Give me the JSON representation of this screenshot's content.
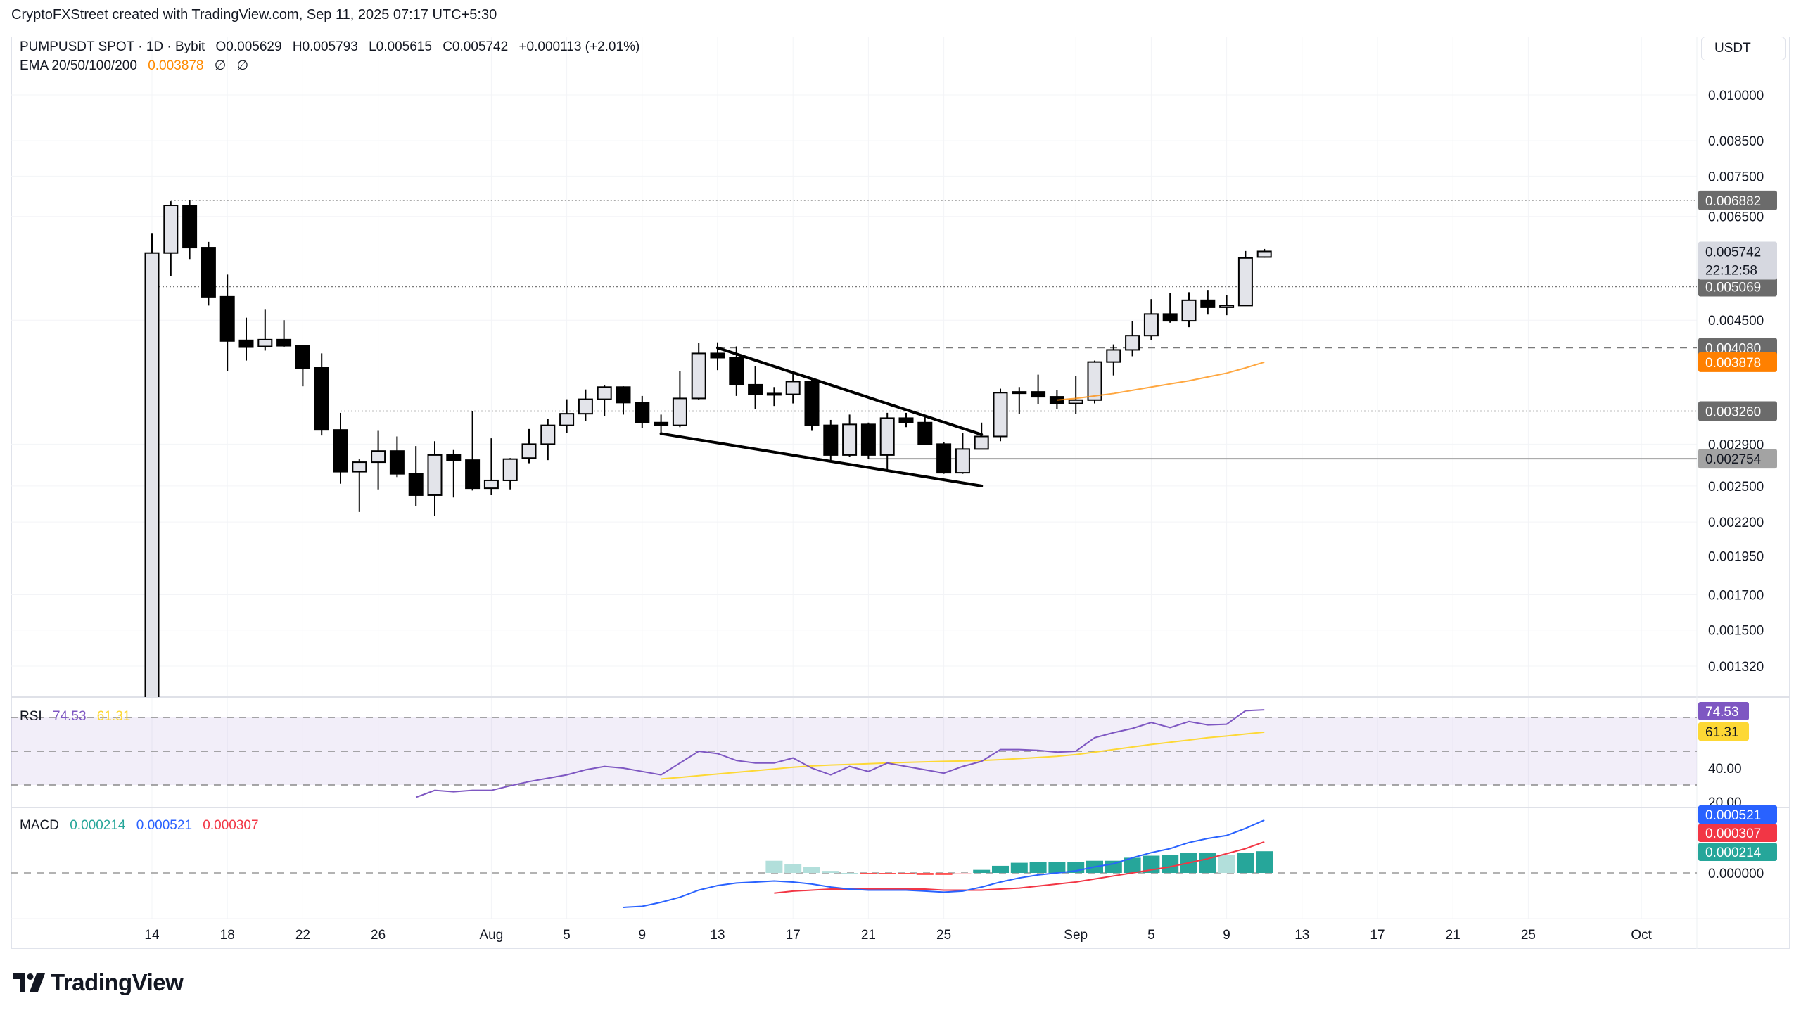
{
  "attribution": "CryptoFXStreet created with TradingView.com, Sep 11, 2025 07:17 UTC+5:30",
  "header": {
    "symbol": "PUMPUSDT SPOT · 1D · Bybit",
    "open": "O0.005629",
    "high": "H0.005793",
    "low": "L0.005615",
    "close": "C0.005742",
    "change": "+0.000113 (+2.01%)",
    "ema_label": "EMA 20/50/100/200",
    "ema_value": "0.003878",
    "ema_na_1": "∅",
    "ema_na_2": "∅"
  },
  "currency": "USDT",
  "logo_text": "TradingView",
  "colors": {
    "ema": "#ff8a00",
    "rsi": "#7e57c2",
    "rsi_ma": "#fdd835",
    "macd": "#2962ff",
    "signal": "#f23645",
    "hist_pos": "#26a69a",
    "hist_pos_light": "#b2dfdb",
    "hist_neg": "#ff5252",
    "hist_neg_light": "#ffcdd2",
    "up_body": "#e3e4ea",
    "down_body": "#000000"
  },
  "chart_data": [
    {
      "type": "candlestick",
      "scale": "log",
      "y_ticks": [
        "0.010000",
        "0.008500",
        "0.007500",
        "0.006500",
        "0.004500",
        "0.002900",
        "0.002500",
        "0.002200",
        "0.001950",
        "0.001700",
        "0.001500",
        "0.001320"
      ],
      "x_ticks": [
        {
          "date": "2025-07-14",
          "label": "14"
        },
        {
          "date": "2025-07-18",
          "label": "18"
        },
        {
          "date": "2025-07-22",
          "label": "22"
        },
        {
          "date": "2025-07-26",
          "label": "26"
        },
        {
          "date": "2025-08-01",
          "label": "Aug"
        },
        {
          "date": "2025-08-05",
          "label": "5"
        },
        {
          "date": "2025-08-09",
          "label": "9"
        },
        {
          "date": "2025-08-13",
          "label": "13"
        },
        {
          "date": "2025-08-17",
          "label": "17"
        },
        {
          "date": "2025-08-21",
          "label": "21"
        },
        {
          "date": "2025-08-25",
          "label": "25"
        },
        {
          "date": "2025-09-01",
          "label": "Sep"
        },
        {
          "date": "2025-09-05",
          "label": "5"
        },
        {
          "date": "2025-09-09",
          "label": "9"
        },
        {
          "date": "2025-09-13",
          "label": "13"
        },
        {
          "date": "2025-09-17",
          "label": "17"
        },
        {
          "date": "2025-09-21",
          "label": "21"
        },
        {
          "date": "2025-09-25",
          "label": "25"
        },
        {
          "date": "2025-10-01",
          "label": "Oct"
        }
      ],
      "candles_columns": [
        "date",
        "open",
        "high",
        "low",
        "close"
      ],
      "candles": [
        [
          "2025-07-14",
          0.0011,
          0.00613,
          0.0011,
          0.00571
        ],
        [
          "2025-07-15",
          0.00571,
          0.00686,
          0.00526,
          0.00676
        ],
        [
          "2025-07-16",
          0.00676,
          0.00688,
          0.00559,
          0.00582
        ],
        [
          "2025-07-17",
          0.00582,
          0.00594,
          0.00474,
          0.00489
        ],
        [
          "2025-07-18",
          0.00489,
          0.00529,
          0.00376,
          0.00418
        ],
        [
          "2025-07-19",
          0.00419,
          0.00454,
          0.0039,
          0.00409
        ],
        [
          "2025-07-20",
          0.0041,
          0.00467,
          0.00404,
          0.0042
        ],
        [
          "2025-07-21",
          0.0042,
          0.0045,
          0.00409,
          0.00411
        ],
        [
          "2025-07-22",
          0.00411,
          0.00411,
          0.00356,
          0.0038
        ],
        [
          "2025-07-23",
          0.0038,
          0.004,
          0.00299,
          0.00305
        ],
        [
          "2025-07-24",
          0.00305,
          0.00324,
          0.00252,
          0.00263
        ],
        [
          "2025-07-25",
          0.00263,
          0.00275,
          0.00228,
          0.00272
        ],
        [
          "2025-07-26",
          0.00272,
          0.00304,
          0.00247,
          0.00283
        ],
        [
          "2025-07-27",
          0.00283,
          0.00298,
          0.00258,
          0.00261
        ],
        [
          "2025-07-28",
          0.00261,
          0.00288,
          0.00233,
          0.00242
        ],
        [
          "2025-07-29",
          0.00242,
          0.00293,
          0.00225,
          0.00279
        ],
        [
          "2025-07-30",
          0.00279,
          0.00284,
          0.0024,
          0.00274
        ],
        [
          "2025-07-31",
          0.00274,
          0.00326,
          0.00246,
          0.00248
        ],
        [
          "2025-08-01",
          0.00248,
          0.00296,
          0.00242,
          0.00255
        ],
        [
          "2025-08-02",
          0.00255,
          0.00276,
          0.00247,
          0.00275
        ],
        [
          "2025-08-03",
          0.00276,
          0.00306,
          0.00271,
          0.0029
        ],
        [
          "2025-08-04",
          0.0029,
          0.00317,
          0.00274,
          0.0031
        ],
        [
          "2025-08-05",
          0.0031,
          0.0034,
          0.00302,
          0.00323
        ],
        [
          "2025-08-06",
          0.00323,
          0.00352,
          0.00315,
          0.0034
        ],
        [
          "2025-08-07",
          0.0034,
          0.00357,
          0.0032,
          0.00355
        ],
        [
          "2025-08-08",
          0.00355,
          0.00356,
          0.00322,
          0.00336
        ],
        [
          "2025-08-09",
          0.00336,
          0.00344,
          0.00307,
          0.00313
        ],
        [
          "2025-08-10",
          0.00313,
          0.00322,
          0.003,
          0.0031
        ],
        [
          "2025-08-11",
          0.0031,
          0.00376,
          0.00308,
          0.00341
        ],
        [
          "2025-08-12",
          0.00341,
          0.00415,
          0.00339,
          0.004
        ],
        [
          "2025-08-13",
          0.004,
          0.00416,
          0.00377,
          0.00394
        ],
        [
          "2025-08-14",
          0.00394,
          0.0041,
          0.00344,
          0.00358
        ],
        [
          "2025-08-15",
          0.00358,
          0.00382,
          0.00328,
          0.00346
        ],
        [
          "2025-08-16",
          0.00346,
          0.00355,
          0.00332,
          0.00347
        ],
        [
          "2025-08-17",
          0.00346,
          0.00374,
          0.00335,
          0.00362
        ],
        [
          "2025-08-18",
          0.00362,
          0.00367,
          0.00304,
          0.0031
        ],
        [
          "2025-08-19",
          0.0031,
          0.00316,
          0.00273,
          0.00279
        ],
        [
          "2025-08-20",
          0.00279,
          0.00322,
          0.00277,
          0.00311
        ],
        [
          "2025-08-21",
          0.00311,
          0.00313,
          0.00275,
          0.00279
        ],
        [
          "2025-08-22",
          0.00279,
          0.00324,
          0.00265,
          0.00318
        ],
        [
          "2025-08-23",
          0.00318,
          0.00324,
          0.00308,
          0.00313
        ],
        [
          "2025-08-24",
          0.00313,
          0.00319,
          0.0029,
          0.0029
        ],
        [
          "2025-08-25",
          0.0029,
          0.00292,
          0.00261,
          0.00262
        ],
        [
          "2025-08-26",
          0.00262,
          0.00302,
          0.00261,
          0.00285
        ],
        [
          "2025-08-27",
          0.00285,
          0.00313,
          0.00285,
          0.00298
        ],
        [
          "2025-08-28",
          0.00298,
          0.00353,
          0.00293,
          0.00348
        ],
        [
          "2025-08-29",
          0.00348,
          0.00355,
          0.00323,
          0.00349
        ],
        [
          "2025-08-30",
          0.00349,
          0.00371,
          0.00334,
          0.00343
        ],
        [
          "2025-08-31",
          0.00343,
          0.00351,
          0.00328,
          0.00335
        ],
        [
          "2025-09-01",
          0.00335,
          0.00369,
          0.00323,
          0.00339
        ],
        [
          "2025-09-02",
          0.00339,
          0.0039,
          0.00335,
          0.00388
        ],
        [
          "2025-09-03",
          0.00388,
          0.00413,
          0.0037,
          0.00405
        ],
        [
          "2025-09-04",
          0.00405,
          0.00449,
          0.00396,
          0.00426
        ],
        [
          "2025-09-05",
          0.00426,
          0.00485,
          0.00419,
          0.0046
        ],
        [
          "2025-09-06",
          0.0046,
          0.00496,
          0.00446,
          0.00449
        ],
        [
          "2025-09-07",
          0.00449,
          0.00497,
          0.00439,
          0.00483
        ],
        [
          "2025-09-08",
          0.00483,
          0.00501,
          0.00459,
          0.00471
        ],
        [
          "2025-09-09",
          0.00471,
          0.00492,
          0.00458,
          0.00474
        ],
        [
          "2025-09-10",
          0.00474,
          0.00575,
          0.00474,
          0.00561
        ],
        [
          "2025-09-11",
          0.005629,
          0.005793,
          0.005615,
          0.005742
        ]
      ],
      "ema50": {
        "start": "2025-08-31",
        "values": [
          0.00339,
          0.00341,
          0.00344,
          0.00347,
          0.00351,
          0.00355,
          0.00359,
          0.00363,
          0.00368,
          0.00373,
          0.0038,
          0.003878
        ]
      },
      "horizontal_levels": [
        {
          "price": 0.006882,
          "label": "0.006882",
          "style": "dotted",
          "from": "2025-07-15",
          "tag_color": "#6b6b6b",
          "tag_text": "#ffffff"
        },
        {
          "price": 0.005069,
          "label": "0.005069",
          "style": "dotted",
          "from": "2025-07-14",
          "tag_color": "#6b6b6b",
          "tag_text": "#ffffff"
        },
        {
          "price": 0.00408,
          "label": "0.004080",
          "style": "dashed",
          "from": "2025-08-13",
          "tag_color": "#6b6b6b",
          "tag_text": "#ffffff"
        },
        {
          "price": 0.00326,
          "label": "0.003260",
          "style": "dotted",
          "from": "2025-07-24",
          "tag_color": "#6b6b6b",
          "tag_text": "#ffffff"
        },
        {
          "price": 0.002754,
          "label": "0.002754",
          "style": "solid",
          "from": "2025-08-21",
          "tag_color": "#a3a3a3",
          "tag_text": "#131722"
        }
      ],
      "last_price": {
        "price": 0.005742,
        "label": "0.005742",
        "countdown": "22:12:58"
      },
      "ema_tag": {
        "price": 0.003878,
        "label": "0.003878"
      },
      "trendlines": [
        {
          "from": [
            "2025-08-13",
            0.00408
          ],
          "to": [
            "2025-08-27",
            0.003
          ]
        },
        {
          "from": [
            "2025-08-10",
            0.00301
          ],
          "to": [
            "2025-08-27",
            0.0025
          ]
        }
      ]
    },
    {
      "type": "line",
      "name": "RSI",
      "label": "RSI",
      "y_ticks": [
        "40.00",
        "20.00"
      ],
      "bands": [
        70,
        50,
        30
      ],
      "rsi": {
        "start": "2025-07-28",
        "values": [
          22.7,
          26.8,
          26,
          26.8,
          26.8,
          29.5,
          32,
          34,
          36,
          39,
          41,
          40,
          38,
          36,
          43,
          50,
          48.6,
          44.5,
          43,
          43,
          46,
          40,
          36,
          41,
          38,
          43,
          41,
          39,
          37,
          41,
          44,
          51,
          51,
          50.5,
          49.5,
          50,
          58,
          61,
          63.5,
          67,
          64,
          67.6,
          65.6,
          66,
          74,
          74.53
        ]
      },
      "rsi_ma": {
        "start": "2025-08-10",
        "values": [
          33.6,
          34.5,
          35.5,
          36.5,
          37.5,
          38.5,
          39.5,
          40.5,
          41.3,
          41.8,
          42.2,
          42.6,
          43,
          43.4,
          43.7,
          44,
          44.2,
          44.5,
          45,
          45.6,
          46.3,
          47,
          48,
          49.5,
          51,
          52.5,
          54,
          55.3,
          56.6,
          58,
          59,
          60.2,
          61.31
        ]
      },
      "rsi_label": "74.53",
      "rsi_ma_label": "61.31"
    },
    {
      "type": "line",
      "name": "MACD",
      "label": "MACD",
      "y_ticks": [
        "0.000000"
      ],
      "hist_label": "0.000214",
      "macd_label": "0.000521",
      "signal_label": "0.000307",
      "macd": {
        "start": "2025-08-08",
        "values": [
          -0.00034,
          -0.00033,
          -0.00029,
          -0.00024,
          -0.00017,
          -0.000125,
          -0.0001,
          -9e-05,
          -8e-05,
          -9e-05,
          -0.00011,
          -0.00014,
          -0.00016,
          -0.00017,
          -0.00017,
          -0.00017,
          -0.00018,
          -0.00019,
          -0.00018,
          -0.00014,
          -9e-05,
          -5e-05,
          -2e-05,
          0,
          2e-05,
          6e-05,
          9e-05,
          0.00015,
          0.0002,
          0.00024,
          0.0003,
          0.00034,
          0.00037,
          0.00044,
          0.000521
        ]
      },
      "signal": {
        "start": "2025-08-16",
        "values": [
          -0.0002,
          -0.00018,
          -0.00017,
          -0.00016,
          -0.00016,
          -0.00016,
          -0.00016,
          -0.00016,
          -0.00016,
          -0.00017,
          -0.00017,
          -0.00017,
          -0.00016,
          -0.00015,
          -0.00013,
          -0.00011,
          -9e-05,
          -6e-05,
          -3e-05,
          0,
          3e-05,
          6e-05,
          0.0001,
          0.00014,
          0.00019,
          0.00024,
          0.000307
        ]
      }
    }
  ]
}
